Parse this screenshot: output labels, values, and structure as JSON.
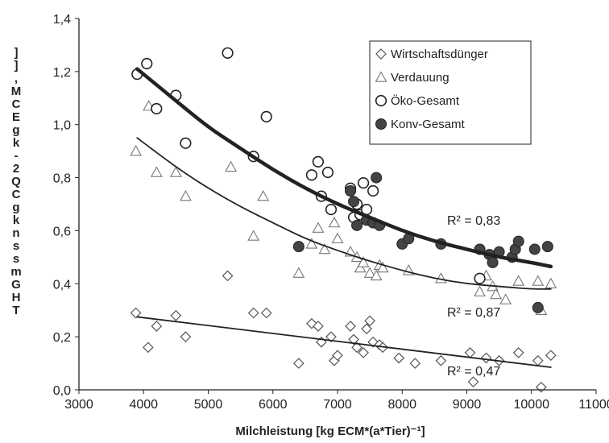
{
  "chart_data": {
    "type": "scatter",
    "title": "",
    "xlabel": "Milchleistung [kg ECM*(a*Tier)⁻¹]",
    "ylabel": "",
    "xlim": [
      3000,
      11000
    ],
    "ylim": [
      0.0,
      1.4
    ],
    "x_ticks": [
      "3000",
      "4000",
      "5000",
      "6000",
      "7000",
      "8000",
      "9000",
      "10000",
      "11000"
    ],
    "y_ticks": [
      "0,0",
      "0,2",
      "0,4",
      "0,6",
      "0,8",
      "1,0",
      "1,2",
      "1,4"
    ],
    "grid": false,
    "legend_position": "top-right",
    "series": [
      {
        "name": "Wirtschaftsdünger",
        "marker": "diamond-open",
        "color": "#555555",
        "points": [
          [
            3880,
            0.29
          ],
          [
            4070,
            0.16
          ],
          [
            4200,
            0.24
          ],
          [
            4500,
            0.28
          ],
          [
            4650,
            0.2
          ],
          [
            5300,
            0.43
          ],
          [
            5700,
            0.29
          ],
          [
            5900,
            0.29
          ],
          [
            6400,
            0.1
          ],
          [
            6600,
            0.25
          ],
          [
            6700,
            0.24
          ],
          [
            6750,
            0.18
          ],
          [
            6900,
            0.2
          ],
          [
            6950,
            0.11
          ],
          [
            7000,
            0.13
          ],
          [
            7200,
            0.24
          ],
          [
            7250,
            0.19
          ],
          [
            7300,
            0.16
          ],
          [
            7400,
            0.14
          ],
          [
            7450,
            0.23
          ],
          [
            7500,
            0.26
          ],
          [
            7550,
            0.18
          ],
          [
            7650,
            0.17
          ],
          [
            7700,
            0.16
          ],
          [
            7950,
            0.12
          ],
          [
            8200,
            0.1
          ],
          [
            8600,
            0.11
          ],
          [
            9050,
            0.14
          ],
          [
            9100,
            0.03
          ],
          [
            9300,
            0.12
          ],
          [
            9500,
            0.11
          ],
          [
            9800,
            0.14
          ],
          [
            10100,
            0.11
          ],
          [
            10150,
            0.01
          ],
          [
            10300,
            0.13
          ]
        ]
      },
      {
        "name": "Verdauung",
        "marker": "triangle-open",
        "color": "#777777",
        "points": [
          [
            3880,
            0.9
          ],
          [
            4080,
            1.07
          ],
          [
            4200,
            0.82
          ],
          [
            4500,
            0.82
          ],
          [
            4650,
            0.73
          ],
          [
            5350,
            0.84
          ],
          [
            5700,
            0.58
          ],
          [
            5850,
            0.73
          ],
          [
            6400,
            0.44
          ],
          [
            6600,
            0.55
          ],
          [
            6700,
            0.61
          ],
          [
            6800,
            0.53
          ],
          [
            6950,
            0.63
          ],
          [
            7000,
            0.57
          ],
          [
            7200,
            0.52
          ],
          [
            7300,
            0.5
          ],
          [
            7350,
            0.46
          ],
          [
            7400,
            0.48
          ],
          [
            7500,
            0.44
          ],
          [
            7600,
            0.43
          ],
          [
            7650,
            0.47
          ],
          [
            7700,
            0.46
          ],
          [
            8100,
            0.45
          ],
          [
            8600,
            0.42
          ],
          [
            9200,
            0.37
          ],
          [
            9300,
            0.43
          ],
          [
            9400,
            0.39
          ],
          [
            9450,
            0.36
          ],
          [
            9600,
            0.34
          ],
          [
            9800,
            0.41
          ],
          [
            10100,
            0.41
          ],
          [
            10150,
            0.3
          ],
          [
            10300,
            0.4
          ]
        ]
      },
      {
        "name": "Öko-Gesamt",
        "marker": "circle-open",
        "color": "#222222",
        "points": [
          [
            3900,
            1.19
          ],
          [
            4050,
            1.23
          ],
          [
            4200,
            1.06
          ],
          [
            4500,
            1.11
          ],
          [
            4650,
            0.93
          ],
          [
            5300,
            1.27
          ],
          [
            5700,
            0.88
          ],
          [
            5900,
            1.03
          ],
          [
            6600,
            0.81
          ],
          [
            6700,
            0.86
          ],
          [
            6750,
            0.73
          ],
          [
            6850,
            0.82
          ],
          [
            6900,
            0.68
          ],
          [
            7200,
            0.76
          ],
          [
            7250,
            0.65
          ],
          [
            7300,
            0.7
          ],
          [
            7350,
            0.66
          ],
          [
            7400,
            0.78
          ],
          [
            7450,
            0.68
          ],
          [
            7550,
            0.75
          ],
          [
            9200,
            0.42
          ]
        ]
      },
      {
        "name": "Konv-Gesamt",
        "marker": "circle-filled",
        "color": "#444444",
        "points": [
          [
            6400,
            0.54
          ],
          [
            7200,
            0.75
          ],
          [
            7250,
            0.71
          ],
          [
            7300,
            0.62
          ],
          [
            7450,
            0.64
          ],
          [
            7550,
            0.63
          ],
          [
            7600,
            0.8
          ],
          [
            7650,
            0.62
          ],
          [
            8000,
            0.55
          ],
          [
            8100,
            0.57
          ],
          [
            8600,
            0.55
          ],
          [
            9200,
            0.53
          ],
          [
            9350,
            0.51
          ],
          [
            9400,
            0.48
          ],
          [
            9500,
            0.52
          ],
          [
            9700,
            0.5
          ],
          [
            9750,
            0.53
          ],
          [
            9800,
            0.56
          ],
          [
            10050,
            0.53
          ],
          [
            10100,
            0.31
          ],
          [
            10250,
            0.54
          ]
        ]
      }
    ],
    "trendlines": [
      {
        "fit": "total",
        "width": 4.5,
        "x": [
          3900,
          4500,
          5000,
          5500,
          6000,
          6500,
          7000,
          7500,
          8000,
          8500,
          9000,
          9500,
          10000,
          10300
        ],
        "y": [
          1.21,
          1.09,
          0.99,
          0.91,
          0.83,
          0.76,
          0.7,
          0.65,
          0.6,
          0.56,
          0.53,
          0.5,
          0.48,
          0.465
        ],
        "r2_label": "R² = 0,83"
      },
      {
        "fit": "digestion",
        "width": 1.8,
        "x": [
          3900,
          4500,
          5000,
          5500,
          6000,
          6500,
          7000,
          7500,
          8000,
          8500,
          9000,
          9500,
          10000,
          10300
        ],
        "y": [
          0.95,
          0.84,
          0.76,
          0.69,
          0.63,
          0.57,
          0.525,
          0.485,
          0.45,
          0.42,
          0.4,
          0.39,
          0.38,
          0.38
        ],
        "r2_label": "R² = 0,87"
      },
      {
        "fit": "manure",
        "width": 1.8,
        "x": [
          3900,
          10300
        ],
        "y": [
          0.275,
          0.085
        ],
        "r2_label": "R² = 0,47"
      }
    ],
    "yaxis_garbled_label": "] ] , M C E g k - 2 Q C g k n s s m G H T"
  }
}
